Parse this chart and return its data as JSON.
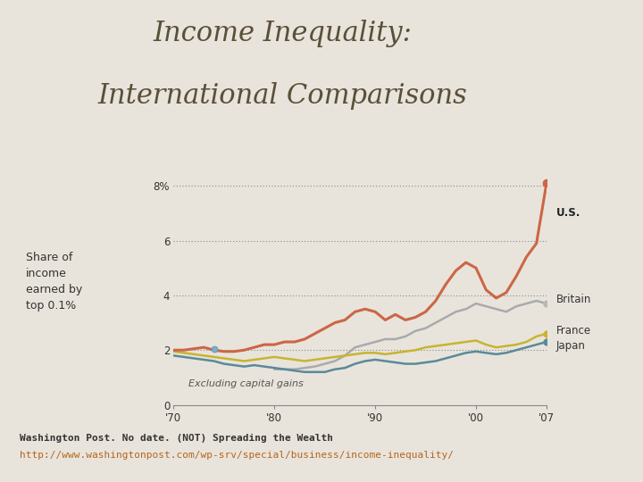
{
  "title_line1": "Income Inequality:",
  "title_line2": "International Comparisons",
  "title_color": "#5a5038",
  "title_fontsize": 22,
  "ylabel": "Share of\nincome\nearned by\ntop 0.1%",
  "ylabel_fontsize": 9,
  "ylabel_color": "#333333",
  "annotation_excl": "Excluding capital gains",
  "annotation_excl_fontsize": 8,
  "source_line1": "Washington Post. No date. (NOT) Spreading the Wealth",
  "source_line2": "http://www.washingtonpost.com/wp-srv/special/business/income-inequality/",
  "source_color1": "#333333",
  "source_color2": "#b5651d",
  "source_fontsize": 8,
  "bg_left_color": "#e8e4dc",
  "plot_bg_color": "#e8e4dc",
  "xlim": [
    1970,
    2007
  ],
  "ylim": [
    0,
    8.8
  ],
  "yticks": [
    0,
    2,
    4,
    6,
    8
  ],
  "ytick_labels": [
    "0",
    "2",
    "4",
    "6",
    "8%"
  ],
  "xtick_labels": [
    "'70",
    "'80",
    "'90",
    "'00",
    "'07"
  ],
  "xtick_positions": [
    1970,
    1980,
    1990,
    2000,
    2007
  ],
  "years": [
    1970,
    1971,
    1972,
    1973,
    1974,
    1975,
    1976,
    1977,
    1978,
    1979,
    1980,
    1981,
    1982,
    1983,
    1984,
    1985,
    1986,
    1987,
    1988,
    1989,
    1990,
    1991,
    1992,
    1993,
    1994,
    1995,
    1996,
    1997,
    1998,
    1999,
    2000,
    2001,
    2002,
    2003,
    2004,
    2005,
    2006,
    2007
  ],
  "us": [
    2.0,
    2.0,
    2.05,
    2.1,
    2.0,
    1.95,
    1.95,
    2.0,
    2.1,
    2.2,
    2.2,
    2.3,
    2.3,
    2.4,
    2.6,
    2.8,
    3.0,
    3.1,
    3.4,
    3.5,
    3.4,
    3.1,
    3.3,
    3.1,
    3.2,
    3.4,
    3.8,
    4.4,
    4.9,
    5.2,
    5.0,
    4.2,
    3.9,
    4.1,
    4.7,
    5.4,
    5.9,
    8.1
  ],
  "britain": [
    null,
    null,
    null,
    null,
    null,
    null,
    null,
    null,
    null,
    null,
    1.3,
    1.3,
    1.3,
    1.35,
    1.4,
    1.5,
    1.6,
    1.8,
    2.1,
    2.2,
    2.3,
    2.4,
    2.4,
    2.5,
    2.7,
    2.8,
    3.0,
    3.2,
    3.4,
    3.5,
    3.7,
    3.6,
    3.5,
    3.4,
    3.6,
    3.7,
    3.8,
    3.7
  ],
  "france": [
    1.95,
    1.9,
    1.85,
    1.8,
    1.75,
    1.7,
    1.65,
    1.6,
    1.65,
    1.7,
    1.75,
    1.7,
    1.65,
    1.6,
    1.65,
    1.7,
    1.75,
    1.8,
    1.85,
    1.9,
    1.9,
    1.85,
    1.9,
    1.95,
    2.0,
    2.1,
    2.15,
    2.2,
    2.25,
    2.3,
    2.35,
    2.2,
    2.1,
    2.15,
    2.2,
    2.3,
    2.5,
    2.6
  ],
  "japan": [
    1.8,
    1.75,
    1.7,
    1.65,
    1.6,
    1.5,
    1.45,
    1.4,
    1.45,
    1.4,
    1.35,
    1.3,
    1.25,
    1.2,
    1.2,
    1.2,
    1.3,
    1.35,
    1.5,
    1.6,
    1.65,
    1.6,
    1.55,
    1.5,
    1.5,
    1.55,
    1.6,
    1.7,
    1.8,
    1.9,
    1.95,
    1.9,
    1.85,
    1.9,
    2.0,
    2.1,
    2.2,
    2.3
  ],
  "us_color": "#cc6644",
  "britain_color": "#aaaaaa",
  "france_color": "#c8b430",
  "japan_color": "#5a8a9a",
  "us_label": "U.S.",
  "britain_label": "Britain",
  "france_label": "France",
  "japan_label": "Japan",
  "dotted_grid_color": "#888888",
  "right_panel_top_color": "#7a6e5a",
  "right_panel_bot_color": "#9a9080",
  "right_panel2_color": "#b0a898"
}
